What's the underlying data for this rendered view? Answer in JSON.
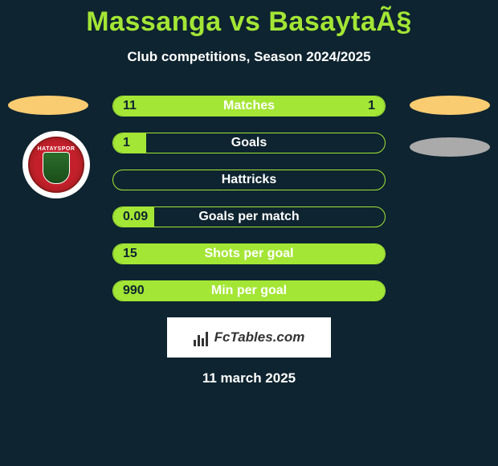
{
  "title": "Massanga vs BasaytaÃ§",
  "subtitle": "Club competitions, Season 2024/2025",
  "date_text": "11 march 2025",
  "badge_text": "HATAYSPOR",
  "watermark_text": "FcTables.com",
  "colors": {
    "background": "#0e2430",
    "accent": "#a3e635",
    "oval_gold": "#facc71",
    "oval_grey": "#aaaaaa",
    "text_on_accent": "#0e2430",
    "white": "#ffffff"
  },
  "stats": [
    {
      "label": "Matches",
      "left_val": "11",
      "right_val": "1",
      "left_pct": 82,
      "right_pct": 18
    },
    {
      "label": "Goals",
      "left_val": "1",
      "right_val": "0",
      "left_pct": 12,
      "right_pct": 0
    },
    {
      "label": "Hattricks",
      "left_val": "0",
      "right_val": "0",
      "left_pct": 0,
      "right_pct": 0
    },
    {
      "label": "Goals per match",
      "left_val": "0.09",
      "right_val": "",
      "left_pct": 15,
      "right_pct": 0
    },
    {
      "label": "Shots per goal",
      "left_val": "15",
      "right_val": "",
      "left_pct": 100,
      "right_pct": 0
    },
    {
      "label": "Min per goal",
      "left_val": "990",
      "right_val": "",
      "left_pct": 100,
      "right_pct": 0
    }
  ]
}
